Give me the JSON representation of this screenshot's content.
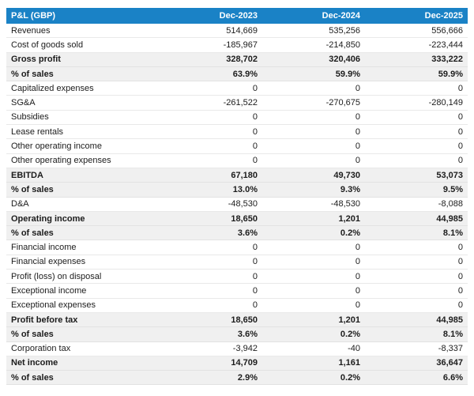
{
  "title": "P&L (GBP)",
  "currency": "GBP",
  "colors": {
    "header_bg": "#1a82c6",
    "header_text": "#ffffff",
    "subtotal_bg": "#f0f0f0",
    "subtotal_border": "#e2e2e2",
    "row_border": "#e9e9e9",
    "text": "#1c1c1c"
  },
  "chart_data": {
    "type": "table",
    "title": "P&L (GBP)",
    "columns": [
      "P&L (GBP)",
      "Dec-2023",
      "Dec-2024",
      "Dec-2025"
    ],
    "rows": [
      {
        "label": "Revenues",
        "values": [
          "514,669",
          "535,256",
          "556,666"
        ],
        "bold": false
      },
      {
        "label": "Cost of goods sold",
        "values": [
          "-185,967",
          "-214,850",
          "-223,444"
        ],
        "bold": false
      },
      {
        "label": "Gross profit",
        "values": [
          "328,702",
          "320,406",
          "333,222"
        ],
        "bold": true
      },
      {
        "label": "% of sales",
        "values": [
          "63.9%",
          "59.9%",
          "59.9%"
        ],
        "bold": true
      },
      {
        "label": "Capitalized expenses",
        "values": [
          "0",
          "0",
          "0"
        ],
        "bold": false
      },
      {
        "label": "SG&A",
        "values": [
          "-261,522",
          "-270,675",
          "-280,149"
        ],
        "bold": false
      },
      {
        "label": "Subsidies",
        "values": [
          "0",
          "0",
          "0"
        ],
        "bold": false
      },
      {
        "label": "Lease rentals",
        "values": [
          "0",
          "0",
          "0"
        ],
        "bold": false
      },
      {
        "label": "Other operating income",
        "values": [
          "0",
          "0",
          "0"
        ],
        "bold": false
      },
      {
        "label": "Other operating expenses",
        "values": [
          "0",
          "0",
          "0"
        ],
        "bold": false
      },
      {
        "label": "EBITDA",
        "values": [
          "67,180",
          "49,730",
          "53,073"
        ],
        "bold": true
      },
      {
        "label": "% of sales",
        "values": [
          "13.0%",
          "9.3%",
          "9.5%"
        ],
        "bold": true
      },
      {
        "label": "D&A",
        "values": [
          "-48,530",
          "-48,530",
          "-8,088"
        ],
        "bold": false
      },
      {
        "label": "Operating income",
        "values": [
          "18,650",
          "1,201",
          "44,985"
        ],
        "bold": true
      },
      {
        "label": "% of sales",
        "values": [
          "3.6%",
          "0.2%",
          "8.1%"
        ],
        "bold": true
      },
      {
        "label": "Financial income",
        "values": [
          "0",
          "0",
          "0"
        ],
        "bold": false
      },
      {
        "label": "Financial expenses",
        "values": [
          "0",
          "0",
          "0"
        ],
        "bold": false
      },
      {
        "label": "Profit (loss) on disposal",
        "values": [
          "0",
          "0",
          "0"
        ],
        "bold": false
      },
      {
        "label": "Exceptional income",
        "values": [
          "0",
          "0",
          "0"
        ],
        "bold": false
      },
      {
        "label": "Exceptional expenses",
        "values": [
          "0",
          "0",
          "0"
        ],
        "bold": false
      },
      {
        "label": "Profit before tax",
        "values": [
          "18,650",
          "1,201",
          "44,985"
        ],
        "bold": true
      },
      {
        "label": "% of sales",
        "values": [
          "3.6%",
          "0.2%",
          "8.1%"
        ],
        "bold": true
      },
      {
        "label": "Corporation tax",
        "values": [
          "-3,942",
          "-40",
          "-8,337"
        ],
        "bold": false
      },
      {
        "label": "Net income",
        "values": [
          "14,709",
          "1,161",
          "36,647"
        ],
        "bold": true
      },
      {
        "label": "% of sales",
        "values": [
          "2.9%",
          "0.2%",
          "6.6%"
        ],
        "bold": true
      }
    ]
  }
}
